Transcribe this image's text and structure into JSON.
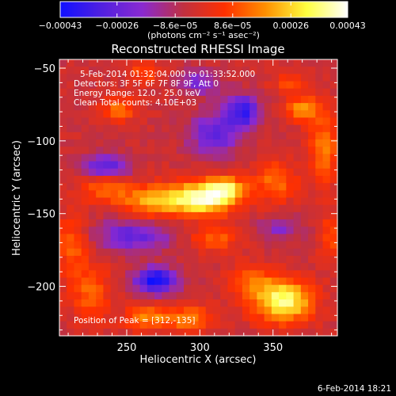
{
  "colorbar": {
    "ticks": [
      -0.00043,
      -0.00026,
      -8.6e-05,
      8.6e-05,
      0.00026,
      0.00043
    ],
    "tick_labels": [
      "−0.00043",
      "−0.00026",
      "−8.6e−05",
      "8.6e−05",
      "0.00026",
      "0.00043"
    ],
    "units_label": "(photons cm⁻² s⁻¹ asec⁻²)",
    "colors": [
      "#1010ff",
      "#5020e0",
      "#8a2ad0",
      "#c03040",
      "#ff3000",
      "#ff9000",
      "#ffff40",
      "#ffffff"
    ]
  },
  "chart_data": {
    "type": "heatmap",
    "title": "Reconstructed RHESSI Image",
    "xlabel": "Heliocentric X (arcsec)",
    "ylabel": "Heliocentric Y (arcsec)",
    "xlim": [
      204,
      394
    ],
    "ylim": [
      -234,
      -44
    ],
    "x_ticks": [
      250,
      300,
      350
    ],
    "x_tick_labels": [
      "250",
      "300",
      "350"
    ],
    "y_ticks": [
      -50,
      -100,
      -150,
      -200
    ],
    "y_tick_labels": [
      "−50",
      "−100",
      "−150",
      "−200"
    ],
    "value_range": [
      -0.00043,
      0.00043
    ],
    "annotations": [
      "5-Feb-2014 01:32:04.000 to 01:33:52.000",
      "Detectors: 3F 5F 6F 7F 8F 9F, Att 0",
      "Energy Range: 12.0 - 25.0 keV",
      "Clean     Total counts: 4.10E+03"
    ],
    "peak_label": "Position of Peak = [312,-135]",
    "peak_position": [
      312,
      -135
    ],
    "sources": [
      {
        "x": 300,
        "y": -140,
        "sx": 16,
        "sy": 8,
        "amp": 0.00043
      },
      {
        "x": 318,
        "y": -133,
        "sx": 10,
        "sy": 6,
        "amp": 0.00028
      },
      {
        "x": 265,
        "y": -142,
        "sx": 14,
        "sy": 8,
        "amp": 0.00022
      },
      {
        "x": 235,
        "y": -132,
        "sx": 12,
        "sy": 7,
        "amp": 0.00018
      },
      {
        "x": 352,
        "y": -128,
        "sx": 10,
        "sy": 10,
        "amp": 0.00018
      },
      {
        "x": 357,
        "y": -210,
        "sx": 14,
        "sy": 10,
        "amp": 0.0004
      },
      {
        "x": 335,
        "y": -195,
        "sx": 10,
        "sy": 8,
        "amp": 0.00016
      },
      {
        "x": 310,
        "y": -167,
        "sx": 12,
        "sy": 6,
        "amp": 0.00016
      },
      {
        "x": 290,
        "y": -222,
        "sx": 14,
        "sy": 6,
        "amp": 0.0002
      },
      {
        "x": 262,
        "y": -222,
        "sx": 10,
        "sy": 6,
        "amp": 0.00018
      },
      {
        "x": 225,
        "y": -205,
        "sx": 10,
        "sy": 14,
        "amp": 0.00016
      },
      {
        "x": 212,
        "y": -170,
        "sx": 8,
        "sy": 14,
        "amp": 0.00016
      },
      {
        "x": 245,
        "y": -78,
        "sx": 8,
        "sy": 6,
        "amp": 0.00018
      },
      {
        "x": 262,
        "y": -53,
        "sx": 8,
        "sy": 5,
        "amp": 0.00014
      },
      {
        "x": 370,
        "y": -78,
        "sx": 8,
        "sy": 6,
        "amp": 0.00022
      },
      {
        "x": 385,
        "y": -105,
        "sx": 7,
        "sy": 18,
        "amp": 0.0002
      },
      {
        "x": 360,
        "y": -60,
        "sx": 8,
        "sy": 5,
        "amp": 0.00012
      },
      {
        "x": 390,
        "y": -165,
        "sx": 6,
        "sy": 10,
        "amp": 0.00014
      },
      {
        "x": 255,
        "y": -165,
        "sx": 18,
        "sy": 8,
        "amp": -0.00022
      },
      {
        "x": 270,
        "y": -196,
        "sx": 10,
        "sy": 6,
        "amp": -0.0004
      },
      {
        "x": 235,
        "y": -118,
        "sx": 12,
        "sy": 6,
        "amp": -0.00026
      },
      {
        "x": 310,
        "y": -95,
        "sx": 12,
        "sy": 10,
        "amp": -0.00024
      },
      {
        "x": 330,
        "y": -80,
        "sx": 8,
        "sy": 8,
        "amp": -0.0003
      },
      {
        "x": 300,
        "y": -60,
        "sx": 10,
        "sy": 6,
        "amp": -0.00018
      },
      {
        "x": 355,
        "y": -160,
        "sx": 10,
        "sy": 6,
        "amp": -0.00014
      }
    ]
  },
  "footer": {
    "date": "6-Feb-2014 18:21"
  }
}
